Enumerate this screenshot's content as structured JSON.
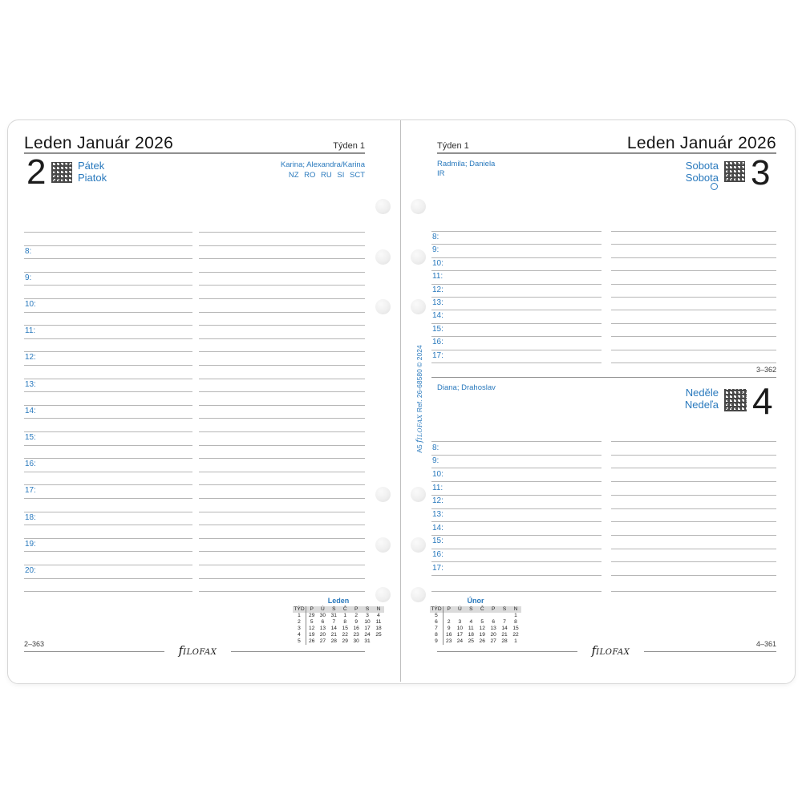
{
  "colors": {
    "accent": "#2979bd"
  },
  "left_page": {
    "title": "Leden Január 2026",
    "week_label": "Týden 1",
    "page_number": "2–363",
    "day": {
      "number": "2",
      "name_cz": "Pátek",
      "name_sk": "Piatok",
      "namedays": "Karina; Alexandra/Karina",
      "holiday_codes": "NZ RO RU SI SCT",
      "hours": [
        "8:",
        "9:",
        "10:",
        "11:",
        "12:",
        "13:",
        "14:",
        "15:",
        "16:",
        "17:",
        "18:",
        "19:",
        "20:"
      ]
    },
    "mini_calendar": {
      "title": "Leden",
      "headers": [
        "TÝD",
        "P",
        "Ú",
        "S",
        "Č",
        "P",
        "S",
        "N"
      ],
      "rows": [
        [
          "1",
          "29",
          "30",
          "31",
          "1",
          "2",
          "3",
          "4"
        ],
        [
          "2",
          "5",
          "6",
          "7",
          "8",
          "9",
          "10",
          "11"
        ],
        [
          "3",
          "12",
          "13",
          "14",
          "15",
          "16",
          "17",
          "18"
        ],
        [
          "4",
          "19",
          "20",
          "21",
          "22",
          "23",
          "24",
          "25"
        ],
        [
          "5",
          "26",
          "27",
          "28",
          "29",
          "30",
          "31",
          ""
        ]
      ]
    },
    "brand": {
      "initial": "f",
      "rest": "ILOFAX"
    }
  },
  "right_page": {
    "title": "Leden Január 2026",
    "week_label": "Týden 1",
    "page_number_day3": "3–362",
    "page_number_day4": "4–361",
    "day3": {
      "number": "3",
      "name_cz": "Sobota",
      "name_sk": "Sobota",
      "namedays": "Radmila; Daniela",
      "holiday_codes": "IR",
      "hours": [
        "8:",
        "9:",
        "10:",
        "11:",
        "12:",
        "13:",
        "14:",
        "15:",
        "16:",
        "17:"
      ]
    },
    "day4": {
      "number": "4",
      "name_cz": "Neděle",
      "name_sk": "Nedeľa",
      "namedays": "Diana; Drahoslav",
      "hours": [
        "8:",
        "9:",
        "10:",
        "11:",
        "12:",
        "13:",
        "14:",
        "15:",
        "16:",
        "17:"
      ]
    },
    "mini_calendar": {
      "title": "Únor",
      "headers": [
        "TÝD",
        "P",
        "Ú",
        "S",
        "Č",
        "P",
        "S",
        "N"
      ],
      "rows": [
        [
          "5",
          "",
          "",
          "",
          "",
          "",
          "",
          "1"
        ],
        [
          "6",
          "2",
          "3",
          "4",
          "5",
          "6",
          "7",
          "8"
        ],
        [
          "7",
          "9",
          "10",
          "11",
          "12",
          "13",
          "14",
          "15"
        ],
        [
          "8",
          "16",
          "17",
          "18",
          "19",
          "20",
          "21",
          "22"
        ],
        [
          "9",
          "23",
          "24",
          "25",
          "26",
          "27",
          "28",
          "1"
        ]
      ]
    },
    "brand": {
      "initial": "f",
      "rest": "ILOFAX"
    }
  },
  "spine": {
    "size_label": "A5",
    "brand": {
      "initial": "f",
      "rest": "ILOFAX"
    },
    "ref_text": "Ref. 26-68580 © 2024"
  }
}
